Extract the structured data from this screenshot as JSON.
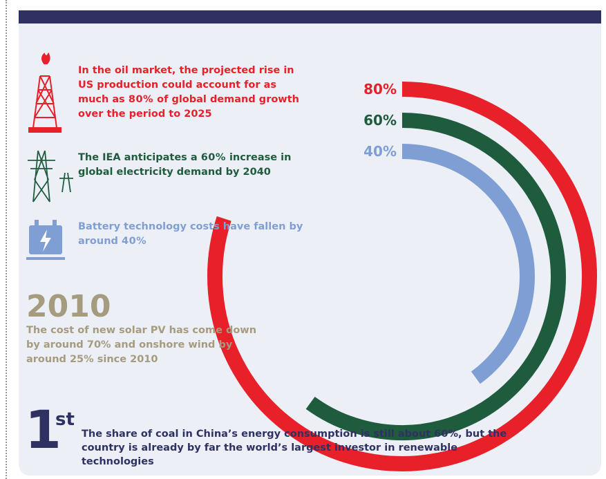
{
  "items": [
    {
      "before": "In the oil market, the projected rise in US production could account for as much as ",
      "highlight": "80%",
      "after": " of global demand growth over the period to 2025",
      "color": "#e8202a"
    },
    {
      "before": "The IEA anticipates a ",
      "highlight": "60%",
      "after": " increase in global electricity demand by 2040",
      "color": "#1f5c3e"
    },
    {
      "before": "Battery technology costs have fallen by around ",
      "highlight": "40%",
      "after": "",
      "color": "#7f9fd4"
    }
  ],
  "year": {
    "title": "2010",
    "text": "The cost of new solar PV has come down by around 70% and onshore wind by around 25% since 2010"
  },
  "rank": {
    "number": "1",
    "suffix": "st",
    "text": "The share of coal in China’s energy consumption is still about 60%, but the country is already by far the world’s largest investor in renewable technologies"
  },
  "chart_data": {
    "type": "radial_bar",
    "ylim": [
      0,
      100
    ],
    "series": [
      {
        "color": "#e8202a",
        "values": [
          80
        ],
        "value_labels": [
          "80%"
        ]
      },
      {
        "color": "#1f5c3e",
        "values": [
          60
        ],
        "value_labels": [
          "60%"
        ]
      },
      {
        "color": "#7f9fd4",
        "values": [
          40
        ],
        "value_labels": [
          "40%"
        ]
      }
    ]
  }
}
